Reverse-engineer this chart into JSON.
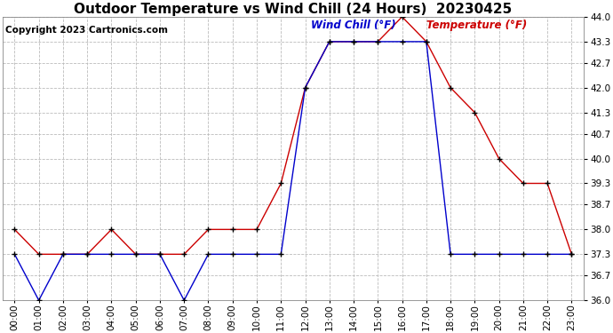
{
  "title": "Outdoor Temperature vs Wind Chill (24 Hours)  20230425",
  "copyright": "Copyright 2023 Cartronics.com",
  "legend_wind": "Wind Chill (°F)",
  "legend_temp": "Temperature (°F)",
  "hours": [
    "00:00",
    "01:00",
    "02:00",
    "03:00",
    "04:00",
    "05:00",
    "06:00",
    "07:00",
    "08:00",
    "09:00",
    "10:00",
    "11:00",
    "12:00",
    "13:00",
    "14:00",
    "15:00",
    "16:00",
    "17:00",
    "18:00",
    "19:00",
    "20:00",
    "21:00",
    "22:00",
    "23:00"
  ],
  "temperature": [
    38.0,
    37.3,
    37.3,
    37.3,
    38.0,
    37.3,
    37.3,
    37.3,
    38.0,
    38.0,
    38.0,
    39.3,
    42.0,
    43.3,
    43.3,
    43.3,
    44.0,
    43.3,
    42.0,
    41.3,
    40.0,
    39.3,
    39.3,
    37.3
  ],
  "wind_chill": [
    37.3,
    36.0,
    37.3,
    37.3,
    37.3,
    37.3,
    37.3,
    36.0,
    37.3,
    37.3,
    37.3,
    37.3,
    42.0,
    43.3,
    43.3,
    43.3,
    43.3,
    43.3,
    37.3,
    37.3,
    37.3,
    37.3,
    37.3,
    37.3
  ],
  "temp_color": "#cc0000",
  "wind_color": "#0000cc",
  "bg_color": "#ffffff",
  "grid_color": "#bbbbbb",
  "ylim_min": 36.0,
  "ylim_max": 44.0,
  "yticks": [
    36.0,
    36.7,
    37.3,
    38.0,
    38.7,
    39.3,
    40.0,
    40.7,
    41.3,
    42.0,
    42.7,
    43.3,
    44.0
  ],
  "title_fontsize": 11,
  "copyright_fontsize": 7.5,
  "legend_fontsize": 8.5,
  "tick_fontsize": 7.5,
  "marker_size": 4
}
